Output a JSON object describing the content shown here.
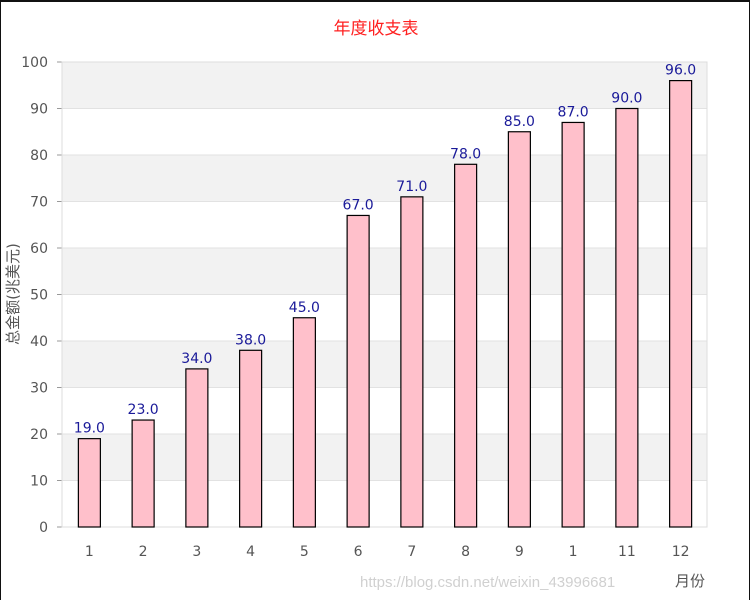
{
  "chart_data": {
    "type": "bar",
    "title": "年度收支表",
    "xlabel": "月份",
    "ylabel": "总金额(兆美元)",
    "categories": [
      "1",
      "2",
      "3",
      "4",
      "5",
      "6",
      "7",
      "8",
      "9",
      "1",
      "11",
      "12"
    ],
    "values": [
      19.0,
      23.0,
      34.0,
      38.0,
      45.0,
      67.0,
      71.0,
      78.0,
      85.0,
      87.0,
      90.0,
      96.0
    ],
    "data_labels": [
      "19.0",
      "23.0",
      "34.0",
      "38.0",
      "45.0",
      "67.0",
      "71.0",
      "78.0",
      "85.0",
      "87.0",
      "90.0",
      "96.0"
    ],
    "ylim": [
      0,
      100
    ],
    "yticks": [
      "0",
      "10",
      "20",
      "30",
      "40",
      "50",
      "60",
      "70",
      "80",
      "90",
      "100"
    ],
    "grid": true,
    "bar_color": "#ffc0cb",
    "bar_edge_color": "#000000",
    "label_color": "#1a1a99",
    "title_color": "#ff2020",
    "band_color": "#f2f2f2"
  },
  "watermark": "https://blog.csdn.net/weixin_43996681"
}
